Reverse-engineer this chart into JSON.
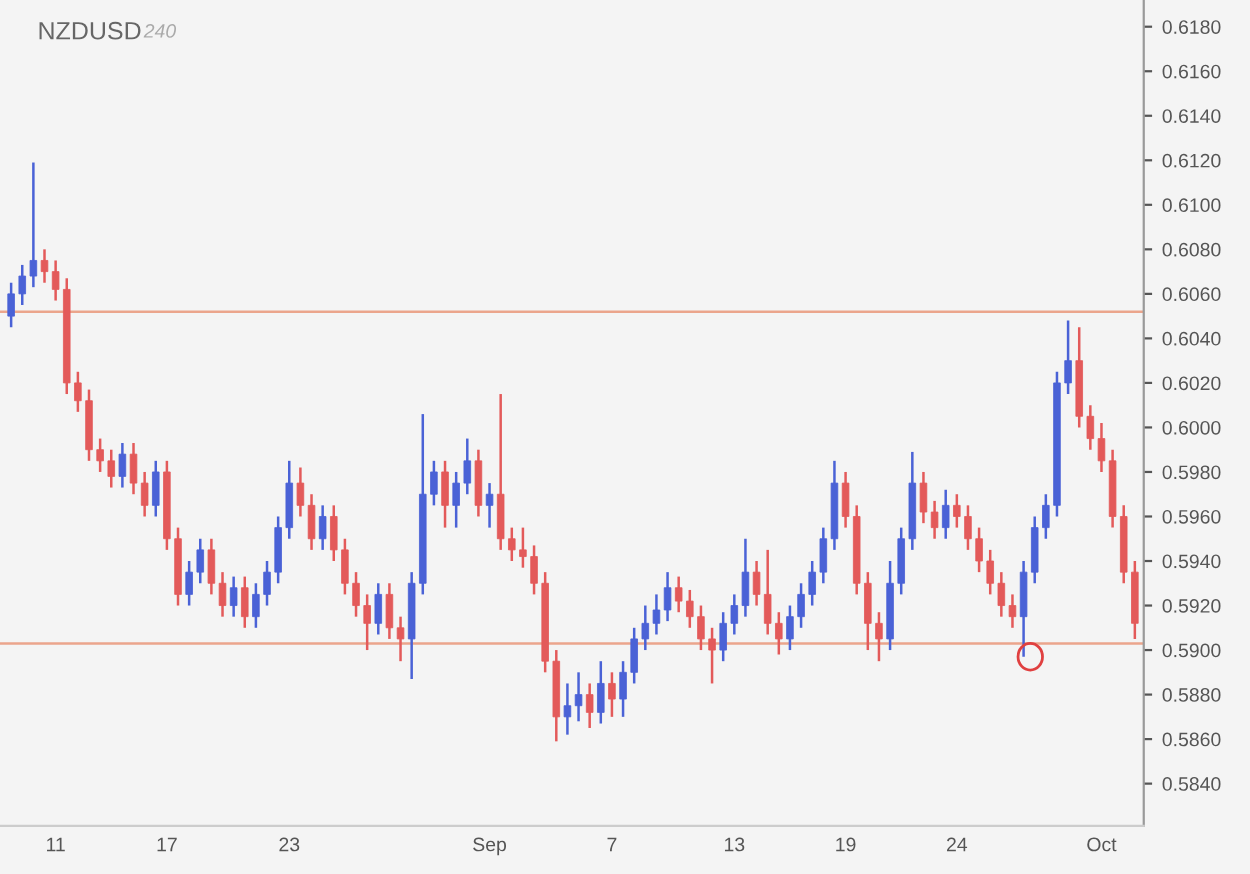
{
  "chart_data": {
    "type": "candlestick",
    "title": "NZDUSD",
    "subtitle": "240",
    "categories": [
      null,
      null,
      null,
      null,
      "11",
      null,
      null,
      null,
      null,
      null,
      null,
      null,
      null,
      null,
      "17",
      null,
      null,
      null,
      null,
      null,
      null,
      null,
      null,
      null,
      null,
      "23",
      null,
      null,
      null,
      null,
      null,
      null,
      null,
      null,
      null,
      null,
      null,
      null,
      null,
      null,
      null,
      null,
      null,
      "Sep",
      null,
      null,
      null,
      null,
      null,
      null,
      null,
      null,
      null,
      null,
      "7",
      null,
      null,
      null,
      null,
      null,
      null,
      null,
      null,
      null,
      null,
      "13",
      null,
      null,
      null,
      null,
      null,
      null,
      null,
      null,
      null,
      "19",
      null,
      null,
      null,
      null,
      null,
      null,
      null,
      null,
      null,
      "24",
      null,
      null,
      null,
      null,
      null,
      null,
      null,
      null,
      null,
      null,
      null,
      null,
      "Oct",
      null,
      null,
      null
    ],
    "ohlc": [
      [
        0.605,
        0.6065,
        0.6045,
        0.606
      ],
      [
        0.606,
        0.6073,
        0.6055,
        0.6068
      ],
      [
        0.6068,
        0.6119,
        0.6063,
        0.6075
      ],
      [
        0.6075,
        0.608,
        0.6065,
        0.607
      ],
      [
        0.607,
        0.6075,
        0.6057,
        0.6062
      ],
      [
        0.6062,
        0.6067,
        0.6015,
        0.602
      ],
      [
        0.602,
        0.6025,
        0.6007,
        0.6012
      ],
      [
        0.6012,
        0.6017,
        0.5985,
        0.599
      ],
      [
        0.599,
        0.5995,
        0.598,
        0.5985
      ],
      [
        0.5985,
        0.599,
        0.5973,
        0.5978
      ],
      [
        0.5978,
        0.5993,
        0.5973,
        0.5988
      ],
      [
        0.5988,
        0.5993,
        0.597,
        0.5975
      ],
      [
        0.5975,
        0.598,
        0.596,
        0.5965
      ],
      [
        0.5965,
        0.5985,
        0.596,
        0.598
      ],
      [
        0.598,
        0.5985,
        0.5945,
        0.595
      ],
      [
        0.595,
        0.5955,
        0.592,
        0.5925
      ],
      [
        0.5925,
        0.594,
        0.592,
        0.5935
      ],
      [
        0.5935,
        0.595,
        0.593,
        0.5945
      ],
      [
        0.5945,
        0.595,
        0.5925,
        0.593
      ],
      [
        0.593,
        0.5935,
        0.5915,
        0.592
      ],
      [
        0.592,
        0.5933,
        0.5915,
        0.5928
      ],
      [
        0.5928,
        0.5933,
        0.591,
        0.5915
      ],
      [
        0.5915,
        0.593,
        0.591,
        0.5925
      ],
      [
        0.5925,
        0.594,
        0.592,
        0.5935
      ],
      [
        0.5935,
        0.596,
        0.593,
        0.5955
      ],
      [
        0.5955,
        0.5985,
        0.595,
        0.5975
      ],
      [
        0.5975,
        0.5982,
        0.596,
        0.5965
      ],
      [
        0.5965,
        0.597,
        0.5945,
        0.595
      ],
      [
        0.595,
        0.5965,
        0.5945,
        0.596
      ],
      [
        0.596,
        0.5965,
        0.594,
        0.5945
      ],
      [
        0.5945,
        0.595,
        0.5925,
        0.593
      ],
      [
        0.593,
        0.5935,
        0.5915,
        0.592
      ],
      [
        0.592,
        0.5925,
        0.59,
        0.5912
      ],
      [
        0.5912,
        0.593,
        0.5907,
        0.5925
      ],
      [
        0.5925,
        0.593,
        0.5905,
        0.591
      ],
      [
        0.591,
        0.5915,
        0.5895,
        0.5905
      ],
      [
        0.5905,
        0.5935,
        0.5887,
        0.593
      ],
      [
        0.593,
        0.6006,
        0.5925,
        0.597
      ],
      [
        0.597,
        0.5985,
        0.5965,
        0.598
      ],
      [
        0.598,
        0.5985,
        0.5955,
        0.5965
      ],
      [
        0.5965,
        0.598,
        0.5955,
        0.5975
      ],
      [
        0.5975,
        0.5995,
        0.597,
        0.5985
      ],
      [
        0.5985,
        0.599,
        0.596,
        0.5965
      ],
      [
        0.5965,
        0.5975,
        0.5955,
        0.597
      ],
      [
        0.597,
        0.6015,
        0.5945,
        0.595
      ],
      [
        0.595,
        0.5955,
        0.594,
        0.5945
      ],
      [
        0.5945,
        0.5955,
        0.5937,
        0.5942
      ],
      [
        0.5942,
        0.5947,
        0.5925,
        0.593
      ],
      [
        0.593,
        0.5935,
        0.589,
        0.5895
      ],
      [
        0.5895,
        0.59,
        0.5859,
        0.587
      ],
      [
        0.587,
        0.5885,
        0.5862,
        0.5875
      ],
      [
        0.5875,
        0.589,
        0.5868,
        0.588
      ],
      [
        0.588,
        0.5885,
        0.5865,
        0.5872
      ],
      [
        0.5872,
        0.5895,
        0.5867,
        0.5885
      ],
      [
        0.5885,
        0.589,
        0.587,
        0.5878
      ],
      [
        0.5878,
        0.5895,
        0.587,
        0.589
      ],
      [
        0.589,
        0.591,
        0.5885,
        0.5905
      ],
      [
        0.5905,
        0.592,
        0.59,
        0.5912
      ],
      [
        0.5912,
        0.5925,
        0.5907,
        0.5918
      ],
      [
        0.5918,
        0.5935,
        0.5913,
        0.5928
      ],
      [
        0.5928,
        0.5933,
        0.5917,
        0.5922
      ],
      [
        0.5922,
        0.5927,
        0.591,
        0.5915
      ],
      [
        0.5915,
        0.592,
        0.59,
        0.5905
      ],
      [
        0.5905,
        0.591,
        0.5885,
        0.59
      ],
      [
        0.59,
        0.5917,
        0.5895,
        0.5912
      ],
      [
        0.5912,
        0.5925,
        0.5907,
        0.592
      ],
      [
        0.592,
        0.595,
        0.5915,
        0.5935
      ],
      [
        0.5935,
        0.594,
        0.592,
        0.5925
      ],
      [
        0.5925,
        0.5945,
        0.5907,
        0.5912
      ],
      [
        0.5912,
        0.5917,
        0.5898,
        0.5905
      ],
      [
        0.5905,
        0.592,
        0.59,
        0.5915
      ],
      [
        0.5915,
        0.593,
        0.591,
        0.5925
      ],
      [
        0.5925,
        0.594,
        0.592,
        0.5935
      ],
      [
        0.5935,
        0.5955,
        0.593,
        0.595
      ],
      [
        0.595,
        0.5985,
        0.5945,
        0.5975
      ],
      [
        0.5975,
        0.598,
        0.5955,
        0.596
      ],
      [
        0.596,
        0.5965,
        0.5925,
        0.593
      ],
      [
        0.593,
        0.5935,
        0.59,
        0.5912
      ],
      [
        0.5912,
        0.5917,
        0.5895,
        0.5905
      ],
      [
        0.5905,
        0.594,
        0.59,
        0.593
      ],
      [
        0.593,
        0.5955,
        0.5925,
        0.595
      ],
      [
        0.595,
        0.5989,
        0.5945,
        0.5975
      ],
      [
        0.5975,
        0.598,
        0.5957,
        0.5962
      ],
      [
        0.5962,
        0.5967,
        0.595,
        0.5955
      ],
      [
        0.5955,
        0.5972,
        0.595,
        0.5965
      ],
      [
        0.5965,
        0.597,
        0.5955,
        0.596
      ],
      [
        0.596,
        0.5965,
        0.5945,
        0.595
      ],
      [
        0.595,
        0.5955,
        0.5935,
        0.594
      ],
      [
        0.594,
        0.5945,
        0.5925,
        0.593
      ],
      [
        0.593,
        0.5935,
        0.5915,
        0.592
      ],
      [
        0.592,
        0.5925,
        0.591,
        0.5915
      ],
      [
        0.5915,
        0.594,
        0.5897,
        0.5935
      ],
      [
        0.5935,
        0.596,
        0.593,
        0.5955
      ],
      [
        0.5955,
        0.597,
        0.595,
        0.5965
      ],
      [
        0.5965,
        0.6025,
        0.596,
        0.602
      ],
      [
        0.602,
        0.6048,
        0.6015,
        0.603
      ],
      [
        0.603,
        0.6045,
        0.6,
        0.6005
      ],
      [
        0.6005,
        0.601,
        0.599,
        0.5995
      ],
      [
        0.5995,
        0.6002,
        0.598,
        0.5985
      ],
      [
        0.5985,
        0.599,
        0.5955,
        0.596
      ],
      [
        0.596,
        0.5965,
        0.593,
        0.5935
      ],
      [
        0.5935,
        0.594,
        0.5905,
        0.5912
      ]
    ],
    "colors": [
      "#4a62d6",
      "#4a62d6",
      "#4a62d6",
      "#e35a5a",
      "#e35a5a",
      "#e35a5a",
      "#e35a5a",
      "#e35a5a",
      "#e35a5a",
      "#e35a5a",
      "#4a62d6",
      "#e35a5a",
      "#e35a5a",
      "#4a62d6",
      "#e35a5a",
      "#e35a5a",
      "#4a62d6",
      "#4a62d6",
      "#e35a5a",
      "#e35a5a",
      "#4a62d6",
      "#e35a5a",
      "#4a62d6",
      "#4a62d6",
      "#4a62d6",
      "#4a62d6",
      "#e35a5a",
      "#e35a5a",
      "#4a62d6",
      "#e35a5a",
      "#e35a5a",
      "#e35a5a",
      "#e35a5a",
      "#4a62d6",
      "#e35a5a",
      "#e35a5a",
      "#4a62d6",
      "#4a62d6",
      "#4a62d6",
      "#e35a5a",
      "#4a62d6",
      "#4a62d6",
      "#e35a5a",
      "#4a62d6",
      "#e35a5a",
      "#e35a5a",
      "#e35a5a",
      "#e35a5a",
      "#e35a5a",
      "#e35a5a",
      "#4a62d6",
      "#4a62d6",
      "#e35a5a",
      "#4a62d6",
      "#e35a5a",
      "#4a62d6",
      "#4a62d6",
      "#4a62d6",
      "#4a62d6",
      "#4a62d6",
      "#e35a5a",
      "#e35a5a",
      "#e35a5a",
      "#e35a5a",
      "#4a62d6",
      "#4a62d6",
      "#4a62d6",
      "#e35a5a",
      "#e35a5a",
      "#e35a5a",
      "#4a62d6",
      "#4a62d6",
      "#4a62d6",
      "#4a62d6",
      "#4a62d6",
      "#e35a5a",
      "#e35a5a",
      "#e35a5a",
      "#e35a5a",
      "#4a62d6",
      "#4a62d6",
      "#4a62d6",
      "#e35a5a",
      "#e35a5a",
      "#4a62d6",
      "#e35a5a",
      "#e35a5a",
      "#e35a5a",
      "#e35a5a",
      "#e35a5a",
      "#e35a5a",
      "#4a62d6",
      "#4a62d6",
      "#4a62d6",
      "#4a62d6",
      "#4a62d6",
      "#e35a5a",
      "#e35a5a",
      "#e35a5a",
      "#e35a5a",
      "#e35a5a",
      "#e35a5a"
    ],
    "ylim": [
      0.5821,
      0.6192
    ],
    "yticks": [
      {
        "value": 0.584,
        "label": "0.5840"
      },
      {
        "value": 0.586,
        "label": "0.5860"
      },
      {
        "value": 0.588,
        "label": "0.5880"
      },
      {
        "value": 0.59,
        "label": "0.5900"
      },
      {
        "value": 0.592,
        "label": "0.5920"
      },
      {
        "value": 0.594,
        "label": "0.5940"
      },
      {
        "value": 0.596,
        "label": "0.5960"
      },
      {
        "value": 0.598,
        "label": "0.5980"
      },
      {
        "value": 0.6,
        "label": "0.6000"
      },
      {
        "value": 0.602,
        "label": "0.6020"
      },
      {
        "value": 0.604,
        "label": "0.6040"
      },
      {
        "value": 0.606,
        "label": "0.6060"
      },
      {
        "value": 0.608,
        "label": "0.6080"
      },
      {
        "value": 0.61,
        "label": "0.6100"
      },
      {
        "value": 0.612,
        "label": "0.6120"
      },
      {
        "value": 0.614,
        "label": "0.6140"
      },
      {
        "value": 0.616,
        "label": "0.6160"
      },
      {
        "value": 0.618,
        "label": "0.6180"
      }
    ],
    "ref_lines": [
      {
        "axis": "y",
        "value": 0.6052,
        "color": "#eba58c"
      },
      {
        "axis": "y",
        "value": 0.5903,
        "color": "#eba58c"
      }
    ],
    "grid": false
  }
}
